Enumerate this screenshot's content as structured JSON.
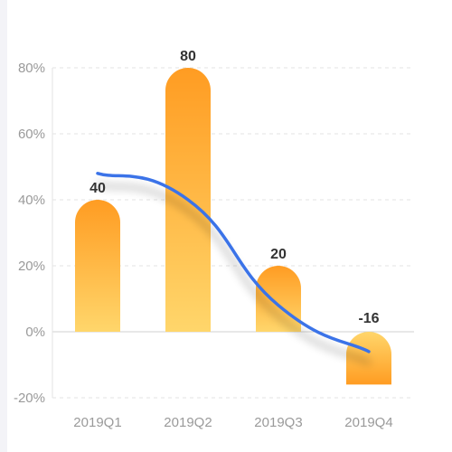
{
  "chart_data": {
    "type": "bar",
    "categories": [
      "2019Q1",
      "2019Q2",
      "2019Q3",
      "2019Q4"
    ],
    "values": [
      40,
      80,
      20,
      -16
    ],
    "data_labels": [
      "40",
      "80",
      "20",
      "-16"
    ],
    "line_series": {
      "values": [
        48,
        40,
        8,
        -6
      ],
      "color": "#3b73e8"
    },
    "y_ticks": [
      80,
      60,
      40,
      20,
      0,
      -20
    ],
    "y_tick_labels": [
      "80%",
      "60%",
      "40%",
      "20%",
      "0%",
      "-20%"
    ],
    "ylim": [
      -20,
      80
    ],
    "grid": true,
    "legend": "none",
    "colors": {
      "bar_top": "#ff9c22",
      "bar_bottom": "#ffd66b",
      "line": "#3b73e8",
      "grid": "#e3e3e3",
      "axis": "#d0d0d0",
      "tick_text": "#9a9a9a",
      "label_text": "#333333"
    }
  }
}
